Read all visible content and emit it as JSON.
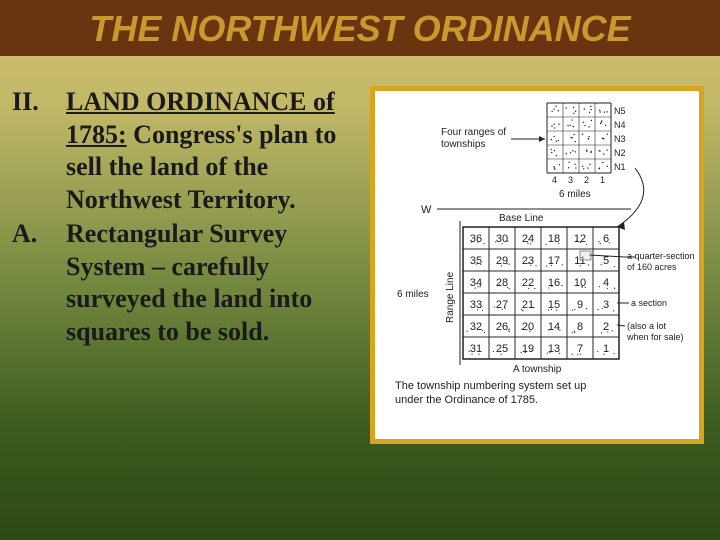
{
  "title": "THE NORTHWEST ORDINANCE",
  "outline": {
    "item1": {
      "label": "II.",
      "underlined": "LAND ORDINANCE of 1785:",
      "rest": " Congress's plan to sell the land of the Northwest Territory."
    },
    "item2": {
      "label": "A.",
      "text": "Rectangular Survey System – carefully surveyed the land into squares to be sold."
    }
  },
  "diagram": {
    "ranges_label": "Four ranges of townships",
    "range_cols": [
      "4",
      "3",
      "2",
      "1"
    ],
    "range_rows_right": [
      "N5",
      "N4",
      "N3",
      "N2",
      "N1"
    ],
    "baseline": "Base Line",
    "w_label": "W",
    "six_miles_h": "6 miles",
    "six_miles_v": "6 miles",
    "range_line": "Range Line",
    "township_label": "A township",
    "grid": [
      [
        "36",
        "30",
        "24",
        "18",
        "12",
        "6"
      ],
      [
        "35",
        "29",
        "23",
        "17",
        "11",
        "5"
      ],
      [
        "34",
        "28",
        "22",
        "16",
        "10",
        "4"
      ],
      [
        "33",
        "27",
        "21",
        "15",
        "9",
        "3"
      ],
      [
        "32",
        "26",
        "20",
        "14",
        "8",
        "2"
      ],
      [
        "31",
        "25",
        "19",
        "13",
        "7",
        "1"
      ]
    ],
    "quarter_label": "a quarter-section of 160 acres",
    "section_label": "a section",
    "also_label": "(also a lot when for sale)",
    "caption1": "The township numbering system set up",
    "caption2": "under the Ordinance of 1785.",
    "colors": {
      "dot": "#222222",
      "line": "#222222",
      "text": "#222222",
      "sectionFill": "#dddddd"
    }
  }
}
